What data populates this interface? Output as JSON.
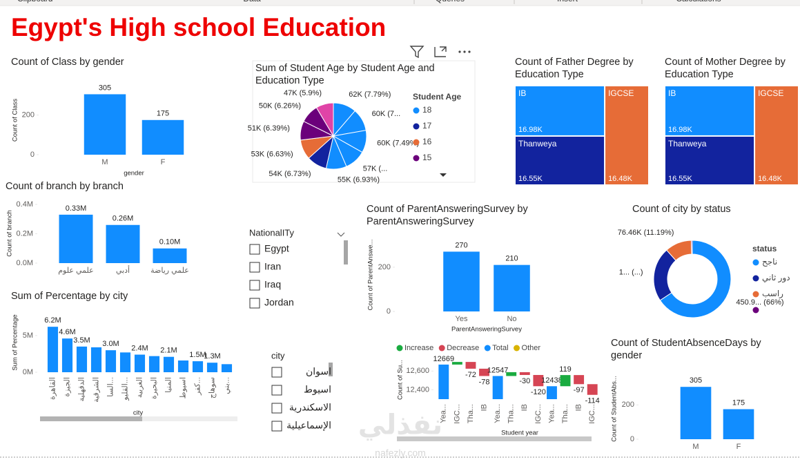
{
  "header": {
    "ribbon": [
      "Clipboard",
      "Data",
      "Queries",
      "Insert",
      "Calculations"
    ],
    "title": "Egypt's High school Education"
  },
  "chart_data": [
    {
      "type": "bar",
      "title": "Count of Class by gender",
      "x_label": "gender",
      "y_label": "Count of Class",
      "categories": [
        "M",
        "F"
      ],
      "values": [
        305,
        175
      ],
      "color": "#118DFF",
      "ylim": [
        0,
        345
      ],
      "yticks": [
        0,
        200
      ]
    },
    {
      "type": "pie",
      "title": "Sum of Student Age by Student Age and Education Type",
      "values": [
        62000,
        60000,
        60000,
        57000,
        55000,
        54000,
        53000,
        51000,
        50000,
        47000
      ],
      "value_labels": [
        "62K (7.79%)",
        "60K (7...",
        "60K (7.49%)",
        "57K (...",
        "55K (6.93%)",
        "54K (6.73%)",
        "53K (6.63%)",
        "51K (6.39%)",
        "50K (6.26%)",
        "47K (5.9%)"
      ],
      "colors": [
        "#118DFF",
        "#118DFF",
        "#118DFF",
        "#118DFF",
        "#118DFF",
        "#12239E",
        "#E66C37",
        "#6B007B",
        "#6B007B",
        "#E044A7"
      ],
      "legend": {
        "title": "Student Age",
        "items": [
          {
            "name": "18",
            "color": "#118DFF"
          },
          {
            "name": "17",
            "color": "#12239E"
          },
          {
            "name": "16",
            "color": "#E66C37"
          },
          {
            "name": "15",
            "color": "#6B007B"
          }
        ]
      }
    },
    {
      "type": "treemap",
      "title": "Count of Father Degree by Education Type",
      "categories": [
        "IB",
        "Thanweya",
        "IGCSE"
      ],
      "values": [
        16980,
        16550,
        16480
      ],
      "value_labels": [
        "16.98K",
        "16.55K",
        "16.48K"
      ],
      "colors": [
        "#118DFF",
        "#12239E",
        "#E66C37"
      ]
    },
    {
      "type": "treemap",
      "title": "Count of Mother Degree by Education Type",
      "categories": [
        "IB",
        "Thanweya",
        "IGCSE"
      ],
      "values": [
        16980,
        16550,
        16480
      ],
      "value_labels": [
        "16.98K",
        "16.55K",
        "16.48K"
      ],
      "colors": [
        "#118DFF",
        "#12239E",
        "#E66C37"
      ]
    },
    {
      "type": "bar",
      "title": "Count of branch by branch",
      "y_label": "Count of branch",
      "categories": [
        "علمي علوم",
        "أدبي",
        "علمي رياضة"
      ],
      "values": [
        330000,
        260000,
        100000
      ],
      "value_labels": [
        "0.33M",
        "0.26M",
        "0.10M"
      ],
      "color": "#118DFF",
      "ylim": [
        0,
        400000
      ],
      "yticks": [
        {
          "value": 0,
          "label": "0.0M"
        },
        {
          "value": 200000,
          "label": "0.2M"
        },
        {
          "value": 400000,
          "label": "0.4M"
        }
      ]
    },
    {
      "type": "bar",
      "title": "Count of ParentAnsweringSurvey by ParentAnsweringSurvey",
      "x_label": "ParentAnsweringSurvey",
      "y_label": "Count of ParentAnswe...",
      "categories": [
        "Yes",
        "No"
      ],
      "values": [
        270,
        210
      ],
      "color": "#118DFF",
      "ylim": [
        0,
        290
      ],
      "yticks": [
        0,
        200
      ]
    },
    {
      "type": "donut",
      "title": "Count of city by status",
      "values": [
        450900,
        156000,
        76460,
        3000
      ],
      "value_labels": [
        "450.9... (66%)",
        "1... (...)",
        "76.46K (11.19%)",
        null
      ],
      "colors": [
        "#118DFF",
        "#12239E",
        "#E66C37",
        "#6B007B"
      ],
      "legend": {
        "title": "status",
        "items": [
          {
            "name": "ناجح",
            "color": "#118DFF"
          },
          {
            "name": "دور ثاني",
            "color": "#12239E"
          },
          {
            "name": "راسب",
            "color": "#E66C37"
          },
          {
            "name": null,
            "color": "#6B007B"
          }
        ]
      }
    },
    {
      "type": "bar",
      "title": "Sum of Percentage by city",
      "x_label": "city",
      "y_label": "Sum of Percentage",
      "rotate_labels": true,
      "categories": [
        "القاهرة",
        "الجيزة",
        "الدقهلية",
        "الشرقية",
        "السا...",
        "القليو...",
        "الغربية",
        "البحيرة",
        "المنيا",
        "اسيوط",
        "كفر...",
        "سوهاج",
        "بني..."
      ],
      "values": [
        6200000,
        4600000,
        3500000,
        3400000,
        3000000,
        2700000,
        2400000,
        2200000,
        2100000,
        1600000,
        1500000,
        1300000,
        1100000
      ],
      "value_labels": [
        "6.2M",
        "4.6M",
        "3.5M",
        null,
        "3.0M",
        null,
        "2.4M",
        null,
        "2.1M",
        null,
        "1.5M",
        "1.3M",
        null
      ],
      "color": "#118DFF",
      "ylim": [
        0,
        6500000
      ],
      "yticks": [
        {
          "value": 0,
          "label": "0M"
        },
        {
          "value": 5000000,
          "label": "5M"
        }
      ]
    },
    {
      "type": "waterfall",
      "x_label": "Student year",
      "y_label": "Count of Su...",
      "categories": [
        "Yea...",
        "IGC...",
        "Tha...",
        "IB",
        "Yea...",
        "Tha...",
        "IB",
        "IGC...",
        "Yea...",
        "Tha...",
        "IB",
        "IGC..."
      ],
      "values": [
        12669,
        28,
        -72,
        -78,
        12547,
        41,
        -30,
        -120,
        12438,
        119,
        -97,
        -114
      ],
      "value_labels": [
        "12669",
        null,
        "-72",
        "-78",
        "12547",
        null,
        "-30",
        "-120",
        "12438",
        "119",
        "-97",
        "-114"
      ],
      "kinds": [
        "total",
        "increase",
        "decrease",
        "decrease",
        "total",
        "increase",
        "decrease",
        "decrease",
        "total",
        "increase",
        "decrease",
        "decrease"
      ],
      "legend": {
        "items": [
          {
            "name": "Increase",
            "kind": "increase",
            "color": "#1AAB40"
          },
          {
            "name": "Decrease",
            "kind": "decrease",
            "color": "#D64554"
          },
          {
            "name": "Total",
            "kind": "total",
            "color": "#118DFF"
          },
          {
            "name": "Other",
            "kind": "other",
            "color": "#D9B300"
          }
        ]
      },
      "ylim": [
        12300,
        12720
      ],
      "yticks": [
        {
          "value": 12400,
          "label": "12,400"
        },
        {
          "value": 12600,
          "label": "12,600"
        }
      ]
    },
    {
      "type": "bar",
      "title": "Count of StudentAbsenceDays by gender",
      "y_label": "Count of StudentAbs...",
      "categories": [
        "M",
        "F"
      ],
      "values": [
        305,
        175
      ],
      "color": "#118DFF",
      "ylim": [
        0,
        330
      ],
      "yticks": [
        0,
        200
      ]
    }
  ],
  "slicers": [
    {
      "title": "NationalITy",
      "items": [
        "Egypt",
        "Iran",
        "Iraq",
        "Jordan"
      ]
    },
    {
      "title": "city",
      "items": [
        "اسوان",
        "اسيوط",
        "الاسكندرية",
        "الإسماعيلية"
      ]
    }
  ],
  "watermark": [
    "نفذلي",
    "nafezly.com"
  ]
}
